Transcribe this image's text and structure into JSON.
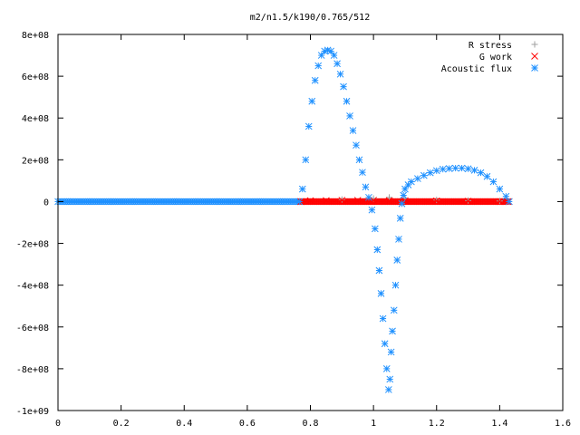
{
  "chart_data": {
    "type": "scatter",
    "title": "m2/n1.5/k190/0.765/512",
    "xlabel": "",
    "ylabel": "",
    "xlim": [
      0,
      1.6
    ],
    "ylim": [
      -1000000000,
      800000000
    ],
    "x_ticks": [
      {
        "v": 0,
        "label": "0"
      },
      {
        "v": 0.2,
        "label": "0.2"
      },
      {
        "v": 0.4,
        "label": "0.4"
      },
      {
        "v": 0.6,
        "label": "0.6"
      },
      {
        "v": 0.8,
        "label": "0.8"
      },
      {
        "v": 1.0,
        "label": "1"
      },
      {
        "v": 1.2,
        "label": "1.2"
      },
      {
        "v": 1.4,
        "label": "1.4"
      },
      {
        "v": 1.6,
        "label": "1.6"
      }
    ],
    "y_ticks": [
      {
        "v": 800000000,
        "label": "8e+08"
      },
      {
        "v": 600000000,
        "label": "6e+08"
      },
      {
        "v": 400000000,
        "label": "4e+08"
      },
      {
        "v": 200000000,
        "label": "2e+08"
      },
      {
        "v": 0,
        "label": "0"
      },
      {
        "v": -200000000,
        "label": "-2e+08"
      },
      {
        "v": -400000000,
        "label": "-4e+08"
      },
      {
        "v": -600000000,
        "label": "-6e+08"
      },
      {
        "v": -800000000,
        "label": "-8e+08"
      },
      {
        "v": -1000000000,
        "label": "-1e+09"
      }
    ],
    "grid": false,
    "legend_position": "top-right",
    "series": [
      {
        "name": "R stress",
        "marker": "plus",
        "color": "#a0a0a0",
        "points": [
          [
            0.9,
            10000000
          ],
          [
            1.0,
            15000000
          ],
          [
            1.05,
            20000000
          ],
          [
            1.1,
            15000000
          ],
          [
            1.2,
            8000000
          ],
          [
            1.3,
            5000000
          ],
          [
            1.4,
            3000000
          ]
        ]
      },
      {
        "name": "G work",
        "marker": "cross",
        "color": "#ff0000",
        "points": [
          [
            0.77,
            0
          ],
          [
            0.8,
            4000000
          ],
          [
            0.85,
            5000000
          ],
          [
            0.9,
            6000000
          ],
          [
            0.95,
            6000000
          ],
          [
            1.0,
            6000000
          ],
          [
            1.05,
            5000000
          ],
          [
            1.1,
            4000000
          ],
          [
            1.2,
            3000000
          ],
          [
            1.3,
            2000000
          ],
          [
            1.4,
            0
          ],
          [
            1.43,
            0
          ]
        ]
      },
      {
        "name": "Acoustic flux",
        "marker": "star",
        "color": "#1e90ff",
        "points": [
          [
            0.765,
            0
          ],
          [
            0.775,
            60000000
          ],
          [
            0.785,
            200000000
          ],
          [
            0.795,
            360000000
          ],
          [
            0.805,
            480000000
          ],
          [
            0.815,
            580000000
          ],
          [
            0.825,
            650000000
          ],
          [
            0.835,
            700000000
          ],
          [
            0.845,
            720000000
          ],
          [
            0.855,
            725000000
          ],
          [
            0.865,
            720000000
          ],
          [
            0.875,
            700000000
          ],
          [
            0.885,
            660000000
          ],
          [
            0.895,
            610000000
          ],
          [
            0.905,
            550000000
          ],
          [
            0.915,
            480000000
          ],
          [
            0.925,
            410000000
          ],
          [
            0.935,
            340000000
          ],
          [
            0.945,
            270000000
          ],
          [
            0.955,
            200000000
          ],
          [
            0.965,
            140000000
          ],
          [
            0.975,
            70000000
          ],
          [
            0.985,
            20000000
          ],
          [
            0.995,
            -40000000
          ],
          [
            1.005,
            -130000000
          ],
          [
            1.012,
            -230000000
          ],
          [
            1.018,
            -330000000
          ],
          [
            1.024,
            -440000000
          ],
          [
            1.03,
            -560000000
          ],
          [
            1.036,
            -680000000
          ],
          [
            1.042,
            -800000000
          ],
          [
            1.048,
            -900000000
          ],
          [
            1.052,
            -850000000
          ],
          [
            1.056,
            -720000000
          ],
          [
            1.06,
            -620000000
          ],
          [
            1.065,
            -520000000
          ],
          [
            1.07,
            -400000000
          ],
          [
            1.075,
            -280000000
          ],
          [
            1.08,
            -180000000
          ],
          [
            1.085,
            -80000000
          ],
          [
            1.09,
            -10000000
          ],
          [
            1.095,
            30000000
          ],
          [
            1.1,
            60000000
          ],
          [
            1.11,
            80000000
          ],
          [
            1.12,
            95000000
          ],
          [
            1.14,
            110000000
          ],
          [
            1.16,
            125000000
          ],
          [
            1.18,
            138000000
          ],
          [
            1.2,
            148000000
          ],
          [
            1.22,
            155000000
          ],
          [
            1.24,
            158000000
          ],
          [
            1.26,
            160000000
          ],
          [
            1.28,
            160000000
          ],
          [
            1.3,
            157000000
          ],
          [
            1.32,
            150000000
          ],
          [
            1.34,
            138000000
          ],
          [
            1.36,
            120000000
          ],
          [
            1.38,
            95000000
          ],
          [
            1.4,
            60000000
          ],
          [
            1.42,
            25000000
          ],
          [
            1.43,
            0
          ]
        ]
      }
    ]
  }
}
